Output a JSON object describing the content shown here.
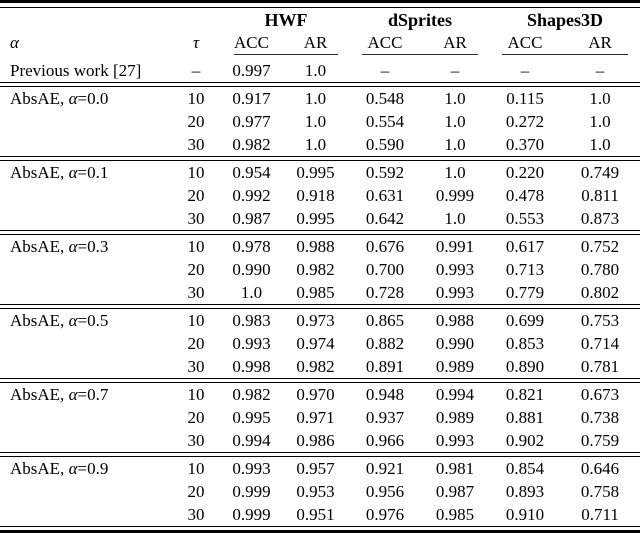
{
  "colors": {
    "text": "#000000",
    "background": "#ffffff",
    "rule": "#000000"
  },
  "table": {
    "col_headers": {
      "alpha": "α",
      "tau": "τ",
      "acc": "ACC",
      "ar": "AR"
    },
    "groups": [
      "HWF",
      "dSprites",
      "Shapes3D"
    ],
    "previous_work": {
      "label": "Previous work [27]",
      "tau": "–",
      "values": [
        "0.997",
        "1.0",
        "–",
        "–",
        "–",
        "–"
      ]
    },
    "blocks": [
      {
        "label": {
          "prefix": "AbsAE, ",
          "alpha": "α",
          "eq": "=0.0"
        },
        "rows": [
          {
            "tau": "10",
            "values": [
              "0.917",
              "1.0",
              "0.548",
              "1.0",
              "0.115",
              "1.0"
            ]
          },
          {
            "tau": "20",
            "values": [
              "0.977",
              "1.0",
              "0.554",
              "1.0",
              "0.272",
              "1.0"
            ]
          },
          {
            "tau": "30",
            "values": [
              "0.982",
              "1.0",
              "0.590",
              "1.0",
              "0.370",
              "1.0"
            ]
          }
        ]
      },
      {
        "label": {
          "prefix": "AbsAE, ",
          "alpha": "α",
          "eq": "=0.1"
        },
        "rows": [
          {
            "tau": "10",
            "values": [
              "0.954",
              "0.995",
              "0.592",
              "1.0",
              "0.220",
              "0.749"
            ]
          },
          {
            "tau": "20",
            "values": [
              "0.992",
              "0.918",
              "0.631",
              "0.999",
              "0.478",
              "0.811"
            ]
          },
          {
            "tau": "30",
            "values": [
              "0.987",
              "0.995",
              "0.642",
              "1.0",
              "0.553",
              "0.873"
            ]
          }
        ]
      },
      {
        "label": {
          "prefix": "AbsAE, ",
          "alpha": "α",
          "eq": "=0.3"
        },
        "rows": [
          {
            "tau": "10",
            "values": [
              "0.978",
              "0.988",
              "0.676",
              "0.991",
              "0.617",
              "0.752"
            ]
          },
          {
            "tau": "20",
            "values": [
              "0.990",
              "0.982",
              "0.700",
              "0.993",
              "0.713",
              "0.780"
            ]
          },
          {
            "tau": "30",
            "values": [
              "1.0",
              "0.985",
              "0.728",
              "0.993",
              "0.779",
              "0.802"
            ]
          }
        ]
      },
      {
        "label": {
          "prefix": "AbsAE, ",
          "alpha": "α",
          "eq": "=0.5"
        },
        "rows": [
          {
            "tau": "10",
            "values": [
              "0.983",
              "0.973",
              "0.865",
              "0.988",
              "0.699",
              "0.753"
            ]
          },
          {
            "tau": "20",
            "values": [
              "0.993",
              "0.974",
              "0.882",
              "0.990",
              "0.853",
              "0.714"
            ]
          },
          {
            "tau": "30",
            "values": [
              "0.998",
              "0.982",
              "0.891",
              "0.989",
              "0.890",
              "0.781"
            ]
          }
        ]
      },
      {
        "label": {
          "prefix": "AbsAE, ",
          "alpha": "α",
          "eq": "=0.7"
        },
        "rows": [
          {
            "tau": "10",
            "values": [
              "0.982",
              "0.970",
              "0.948",
              "0.994",
              "0.821",
              "0.673"
            ]
          },
          {
            "tau": "20",
            "values": [
              "0.995",
              "0.971",
              "0.937",
              "0.989",
              "0.881",
              "0.738"
            ]
          },
          {
            "tau": "30",
            "values": [
              "0.994",
              "0.986",
              "0.966",
              "0.993",
              "0.902",
              "0.759"
            ]
          }
        ]
      },
      {
        "label": {
          "prefix": "AbsAE, ",
          "alpha": "α",
          "eq": "=0.9"
        },
        "rows": [
          {
            "tau": "10",
            "values": [
              "0.993",
              "0.957",
              "0.921",
              "0.981",
              "0.854",
              "0.646"
            ]
          },
          {
            "tau": "20",
            "values": [
              "0.999",
              "0.953",
              "0.956",
              "0.987",
              "0.893",
              "0.758"
            ]
          },
          {
            "tau": "30",
            "values": [
              "0.999",
              "0.951",
              "0.976",
              "0.985",
              "0.910",
              "0.711"
            ]
          }
        ]
      }
    ]
  }
}
